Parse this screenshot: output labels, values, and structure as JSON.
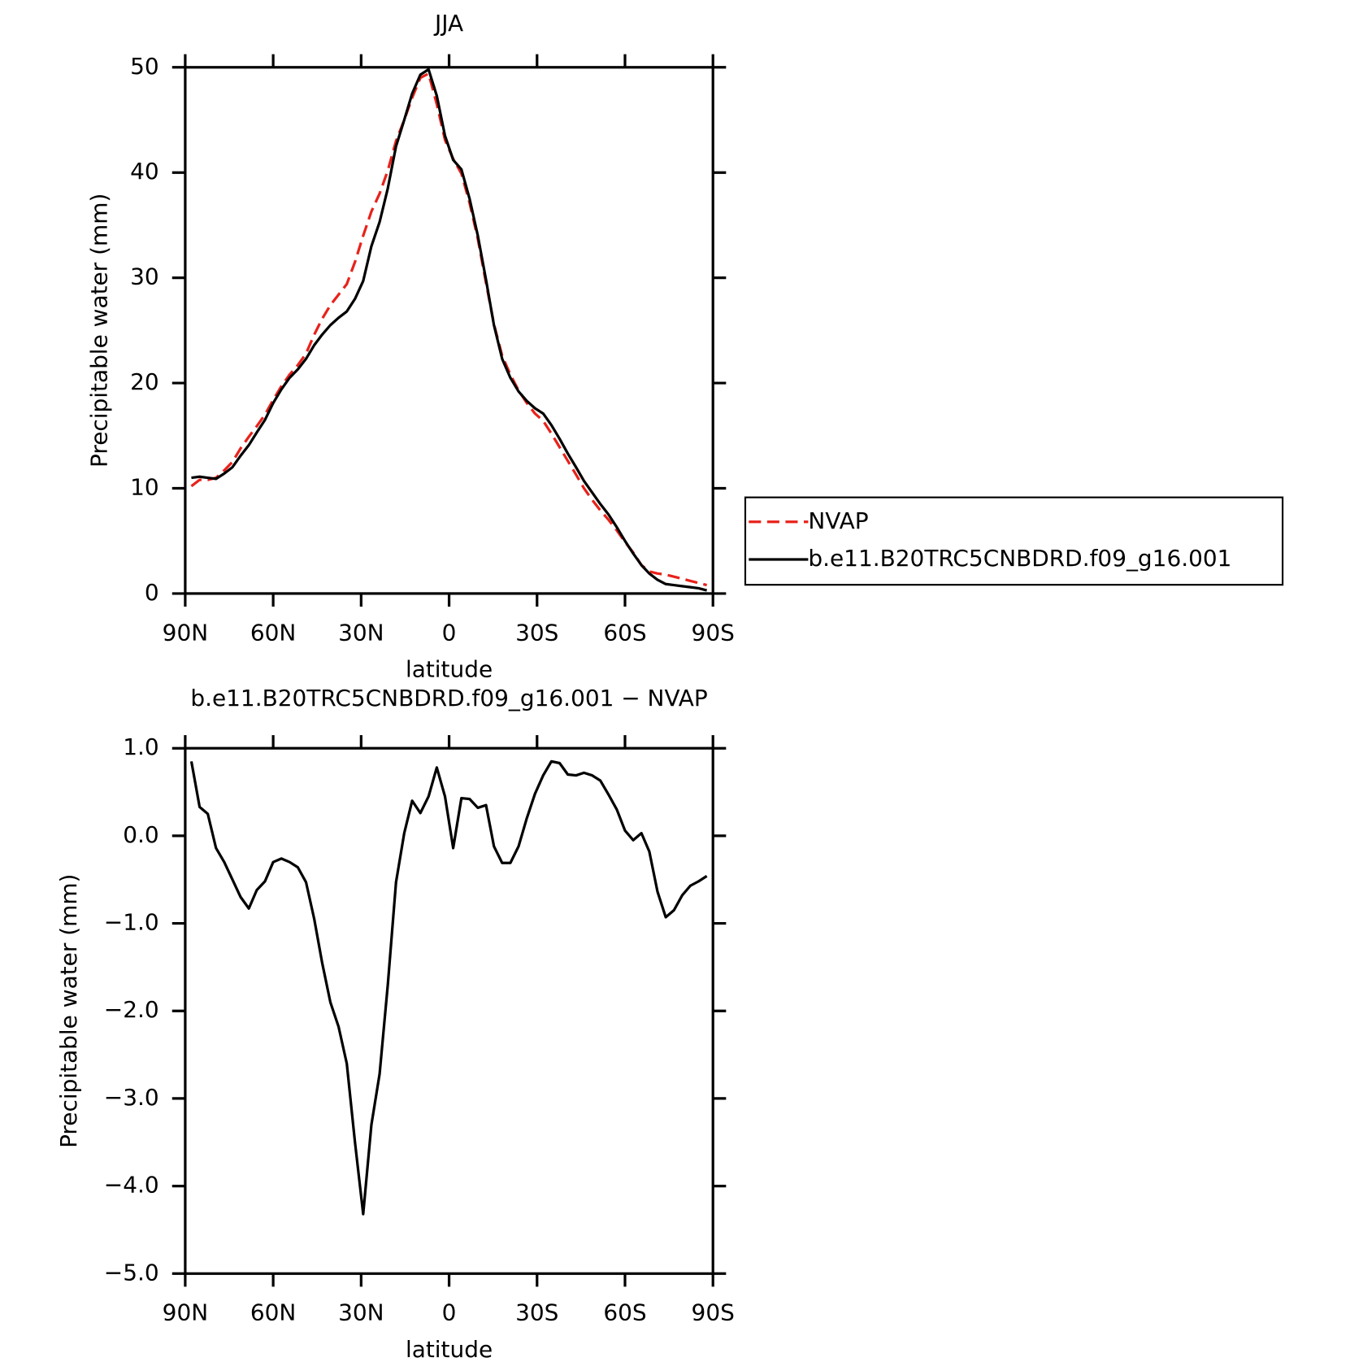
{
  "chart_data": [
    {
      "type": "line",
      "title": "JJA",
      "xlabel": "latitude",
      "ylabel": "Precipitable water (mm)",
      "x": [
        87.9,
        85.1,
        82.3,
        79.5,
        76.7,
        73.9,
        71.1,
        68.3,
        65.6,
        62.8,
        60.0,
        57.2,
        54.4,
        51.6,
        48.8,
        46.0,
        43.3,
        40.5,
        37.7,
        34.9,
        32.1,
        29.3,
        26.5,
        23.7,
        20.9,
        18.1,
        15.3,
        12.6,
        9.8,
        7.0,
        4.2,
        1.4,
        -1.4,
        -4.2,
        -7.0,
        -9.8,
        -12.6,
        -15.3,
        -18.1,
        -20.9,
        -23.7,
        -26.5,
        -29.3,
        -32.1,
        -34.9,
        -37.7,
        -40.5,
        -43.3,
        -46.0,
        -48.8,
        -51.6,
        -54.4,
        -57.2,
        -60.0,
        -62.8,
        -65.6,
        -68.3,
        -71.1,
        -73.9,
        -76.7,
        -79.5,
        -82.3,
        -85.1,
        -87.9
      ],
      "series": [
        {
          "name": "NVAP",
          "color": "#e8221b",
          "style": "dashed",
          "values": [
            10.2,
            10.8,
            10.8,
            11.0,
            11.7,
            12.5,
            13.8,
            14.9,
            15.9,
            17.0,
            18.4,
            19.7,
            20.8,
            21.7,
            22.8,
            24.6,
            26.1,
            27.4,
            28.4,
            29.4,
            31.5,
            34.0,
            36.3,
            38.0,
            40.2,
            43.0,
            45.0,
            47.1,
            49.0,
            49.4,
            46.5,
            43.1,
            41.3,
            39.9,
            37.1,
            33.7,
            29.5,
            25.6,
            22.6,
            20.8,
            19.3,
            18.1,
            17.1,
            16.4,
            15.2,
            13.9,
            12.6,
            11.3,
            10.0,
            8.9,
            7.9,
            7.0,
            6.0,
            4.9,
            3.9,
            2.7,
            2.1,
            1.9,
            1.8,
            1.6,
            1.4,
            1.2,
            1.0,
            0.8
          ]
        },
        {
          "name": "b.e11.B20TRC5CNBDRD.f09_g16.001",
          "color": "#000000",
          "style": "solid",
          "values": [
            11.0,
            11.1,
            11.0,
            10.9,
            11.4,
            12.0,
            13.1,
            14.1,
            15.3,
            16.5,
            18.1,
            19.4,
            20.5,
            21.3,
            22.3,
            23.6,
            24.6,
            25.5,
            26.2,
            26.8,
            28.0,
            29.7,
            33.0,
            35.3,
            38.5,
            42.5,
            45.0,
            47.5,
            49.3,
            49.8,
            47.3,
            43.5,
            41.2,
            40.3,
            37.5,
            34.0,
            29.8,
            25.5,
            22.3,
            20.5,
            19.2,
            18.3,
            17.6,
            17.1,
            16.0,
            14.7,
            13.3,
            12.0,
            10.7,
            9.6,
            8.5,
            7.5,
            6.3,
            5.0,
            3.8,
            2.7,
            1.9,
            1.3,
            0.9,
            0.8,
            0.7,
            0.6,
            0.5,
            0.3
          ]
        }
      ],
      "xlim": [
        90,
        -90
      ],
      "xticks": [
        {
          "value": 90,
          "label": "90N"
        },
        {
          "value": 60,
          "label": "60N"
        },
        {
          "value": 30,
          "label": "30N"
        },
        0,
        {
          "value": -30,
          "label": "30S"
        },
        {
          "value": -60,
          "label": "60S"
        },
        {
          "value": -90,
          "label": "90S"
        }
      ],
      "ylim": [
        0,
        50
      ],
      "yticks": [
        0,
        10,
        20,
        30,
        40,
        50
      ],
      "legend": "outside-right"
    },
    {
      "type": "line",
      "title": "b.e11.B20TRC5CNBDRD.f09_g16.001 − NVAP",
      "xlabel": "latitude",
      "ylabel": "Precipitable water (mm)",
      "x": [
        87.9,
        85.1,
        82.3,
        79.5,
        76.7,
        73.9,
        71.1,
        68.3,
        65.6,
        62.8,
        60.0,
        57.2,
        54.4,
        51.6,
        48.8,
        46.0,
        43.3,
        40.5,
        37.7,
        34.9,
        32.1,
        29.3,
        26.5,
        23.7,
        20.9,
        18.1,
        15.3,
        12.6,
        9.8,
        7.0,
        4.2,
        1.4,
        -1.4,
        -4.2,
        -7.0,
        -9.8,
        -12.6,
        -15.3,
        -18.1,
        -20.9,
        -23.7,
        -26.5,
        -29.3,
        -32.1,
        -34.9,
        -37.7,
        -40.5,
        -43.3,
        -46.0,
        -48.8,
        -51.6,
        -54.4,
        -57.2,
        -60.0,
        -62.8,
        -65.6,
        -68.3,
        -71.1,
        -73.9,
        -76.7,
        -79.5,
        -82.3,
        -85.1,
        -87.9
      ],
      "values": [
        0.85,
        0.33,
        0.25,
        -0.14,
        -0.3,
        -0.5,
        -0.7,
        -0.83,
        -0.62,
        -0.52,
        -0.3,
        -0.26,
        -0.3,
        -0.36,
        -0.53,
        -0.95,
        -1.45,
        -1.9,
        -2.18,
        -2.6,
        -3.5,
        -4.32,
        -3.3,
        -2.72,
        -1.7,
        -0.53,
        0.03,
        0.4,
        0.26,
        0.45,
        0.78,
        0.45,
        -0.14,
        0.43,
        0.42,
        0.32,
        0.35,
        -0.12,
        -0.31,
        -0.31,
        -0.12,
        0.2,
        0.48,
        0.69,
        0.85,
        0.83,
        0.7,
        0.69,
        0.72,
        0.69,
        0.63,
        0.47,
        0.3,
        0.06,
        -0.05,
        0.03,
        -0.18,
        -0.64,
        -0.93,
        -0.85,
        -0.68,
        -0.57,
        -0.52,
        -0.46
      ],
      "color": "#000000",
      "xlim": [
        90,
        -90
      ],
      "xticks": [
        {
          "value": 90,
          "label": "90N"
        },
        {
          "value": 60,
          "label": "60N"
        },
        {
          "value": 30,
          "label": "30N"
        },
        0,
        {
          "value": -30,
          "label": "30S"
        },
        {
          "value": -60,
          "label": "60S"
        },
        {
          "value": -90,
          "label": "90S"
        }
      ],
      "ylim": [
        -5,
        1
      ],
      "yticks": [
        {
          "value": -5,
          "label": "−5.0"
        },
        {
          "value": -4,
          "label": "−4.0"
        },
        {
          "value": -3,
          "label": "−3.0"
        },
        {
          "value": -2,
          "label": "−2.0"
        },
        {
          "value": -1,
          "label": "−1.0"
        },
        {
          "value": 0,
          "label": "0.0"
        },
        {
          "value": 1,
          "label": "1.0"
        }
      ]
    }
  ]
}
